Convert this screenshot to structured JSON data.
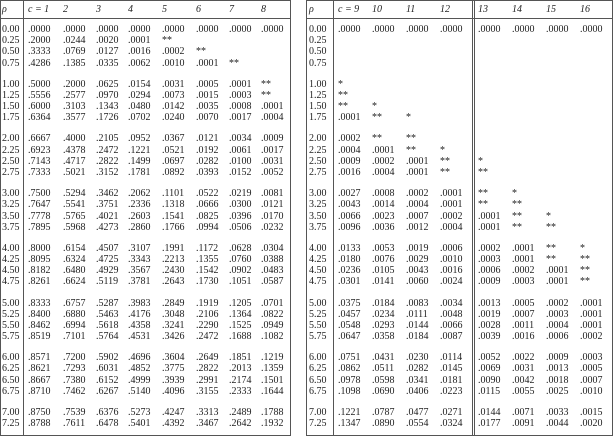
{
  "left": {
    "header": [
      "ρ",
      "c = 1",
      "2",
      "3",
      "4",
      "5",
      "6",
      "7",
      "8"
    ],
    "rows": [
      [
        "0.00",
        ".0000",
        ".0000",
        ".0000",
        ".0000",
        ".0000",
        ".0000",
        ".0000",
        ".0000"
      ],
      [
        "0.25",
        ".2000",
        ".0244",
        ".0020",
        ".0001",
        "**",
        null,
        null,
        null
      ],
      [
        "0.50",
        ".3333",
        ".0769",
        ".0127",
        ".0016",
        ".0002",
        "**",
        null,
        null
      ],
      [
        "0.75",
        ".4286",
        ".1385",
        ".0335",
        ".0062",
        ".0010",
        ".0001",
        "**",
        null
      ],
      [
        "1.00",
        ".5000",
        ".2000",
        ".0625",
        ".0154",
        ".0031",
        ".0005",
        ".0001",
        "**"
      ],
      [
        "1.25",
        ".5556",
        ".2577",
        ".0970",
        ".0294",
        ".0073",
        ".0015",
        ".0003",
        "**"
      ],
      [
        "1.50",
        ".6000",
        ".3103",
        ".1343",
        ".0480",
        ".0142",
        ".0035",
        ".0008",
        ".0001"
      ],
      [
        "1.75",
        ".6364",
        ".3577",
        ".1726",
        ".0702",
        ".0240",
        ".0070",
        ".0017",
        ".0004"
      ],
      [
        "2.00",
        ".6667",
        ".4000",
        ".2105",
        ".0952",
        ".0367",
        ".0121",
        ".0034",
        ".0009"
      ],
      [
        "2.25",
        ".6923",
        ".4378",
        ".2472",
        ".1221",
        ".0521",
        ".0192",
        ".0061",
        ".0017"
      ],
      [
        "2.50",
        ".7143",
        ".4717",
        ".2822",
        ".1499",
        ".0697",
        ".0282",
        ".0100",
        ".0031"
      ],
      [
        "2.75",
        ".7333",
        ".5021",
        ".3152",
        ".1781",
        ".0892",
        ".0393",
        ".0152",
        ".0052"
      ],
      [
        "3.00",
        ".7500",
        ".5294",
        ".3462",
        ".2062",
        ".1101",
        ".0522",
        ".0219",
        ".0081"
      ],
      [
        "3.25",
        ".7647",
        ".5541",
        ".3751",
        ".2336",
        ".1318",
        ".0666",
        ".0300",
        ".0121"
      ],
      [
        "3.50",
        ".7778",
        ".5765",
        ".4021",
        ".2603",
        ".1541",
        ".0825",
        ".0396",
        ".0170"
      ],
      [
        "3.75",
        ".7895",
        ".5968",
        ".4273",
        ".2860",
        ".1766",
        ".0994",
        ".0506",
        ".0232"
      ],
      [
        "4.00",
        ".8000",
        ".6154",
        ".4507",
        ".3107",
        ".1991",
        ".1172",
        ".0628",
        ".0304"
      ],
      [
        "4.25",
        ".8095",
        ".6324",
        ".4725",
        ".3343",
        ".2213",
        ".1355",
        ".0760",
        ".0388"
      ],
      [
        "4.50",
        ".8182",
        ".6480",
        ".4929",
        ".3567",
        ".2430",
        ".1542",
        ".0902",
        ".0483"
      ],
      [
        "4.75",
        ".8261",
        ".6624",
        ".5119",
        ".3781",
        ".2643",
        ".1730",
        ".1051",
        ".0587"
      ],
      [
        "5.00",
        ".8333",
        ".6757",
        ".5287",
        ".3983",
        ".2849",
        ".1919",
        ".1205",
        ".0701"
      ],
      [
        "5.25",
        ".8400",
        ".6880",
        ".5463",
        ".4176",
        ".3048",
        ".2106",
        ".1364",
        ".0822"
      ],
      [
        "5.50",
        ".8462",
        ".6994",
        ".5618",
        ".4358",
        ".3241",
        ".2290",
        ".1525",
        ".0949"
      ],
      [
        "5.75",
        ".8519",
        ".7101",
        ".5764",
        ".4531",
        ".3426",
        ".2472",
        ".1688",
        ".1082"
      ],
      [
        "6.00",
        ".8571",
        ".7200",
        ".5902",
        ".4696",
        ".3604",
        ".2649",
        ".1851",
        ".1219"
      ],
      [
        "6.25",
        ".8621",
        ".7293",
        ".6031",
        ".4852",
        ".3775",
        ".2822",
        ".2013",
        ".1359"
      ],
      [
        "6.50",
        ".8667",
        ".7380",
        ".6152",
        ".4999",
        ".3939",
        ".2991",
        ".2174",
        ".1501"
      ],
      [
        "6.75",
        ".8710",
        ".7462",
        ".6267",
        ".5140",
        ".4096",
        ".3155",
        ".2333",
        ".1644"
      ],
      [
        "7.00",
        ".8750",
        ".7539",
        ".6376",
        ".5273",
        ".4247",
        ".3313",
        ".2489",
        ".1788"
      ],
      [
        "7.25",
        ".8788",
        ".7611",
        ".6478",
        ".5401",
        ".4392",
        ".3467",
        ".2642",
        ".1932"
      ]
    ]
  },
  "right": {
    "header": [
      "ρ",
      "c = 9",
      "10",
      "11",
      "12",
      "13",
      "14",
      "15",
      "16"
    ],
    "rows": [
      [
        "0.00",
        ".0000",
        ".0000",
        ".0000",
        ".0000",
        ".0000",
        ".0000",
        ".0000",
        ".0000"
      ],
      [
        "0.25",
        null,
        null,
        null,
        null,
        null,
        null,
        null,
        null
      ],
      [
        "0.50",
        null,
        null,
        null,
        null,
        null,
        null,
        null,
        null
      ],
      [
        "0.75",
        null,
        null,
        null,
        null,
        null,
        null,
        null,
        null
      ],
      [
        "1.00",
        "*",
        null,
        null,
        null,
        null,
        null,
        null,
        null
      ],
      [
        "1.25",
        "**",
        null,
        null,
        null,
        null,
        null,
        null,
        null
      ],
      [
        "1.50",
        "**",
        "*",
        null,
        null,
        null,
        null,
        null,
        null
      ],
      [
        "1.75",
        ".0001",
        "**",
        "*",
        null,
        null,
        null,
        null,
        null
      ],
      [
        "2.00",
        ".0002",
        "**",
        "**",
        null,
        null,
        null,
        null,
        null
      ],
      [
        "2.25",
        ".0004",
        ".0001",
        "**",
        "*",
        null,
        null,
        null,
        null
      ],
      [
        "2.50",
        ".0009",
        ".0002",
        ".0001",
        "**",
        "*",
        null,
        null,
        null
      ],
      [
        "2.75",
        ".0016",
        ".0004",
        ".0001",
        "**",
        "**",
        null,
        null,
        null
      ],
      [
        "3.00",
        ".0027",
        ".0008",
        ".0002",
        ".0001",
        "**",
        "*",
        null,
        null
      ],
      [
        "3.25",
        ".0043",
        ".0014",
        ".0004",
        ".0001",
        "**",
        "**",
        null,
        null
      ],
      [
        "3.50",
        ".0066",
        ".0023",
        ".0007",
        ".0002",
        ".0001",
        "**",
        "*",
        null
      ],
      [
        "3.75",
        ".0096",
        ".0036",
        ".0012",
        ".0004",
        ".0001",
        "**",
        "**",
        null
      ],
      [
        "4.00",
        ".0133",
        ".0053",
        ".0019",
        ".0006",
        ".0002",
        ".0001",
        "**",
        "*"
      ],
      [
        "4.25",
        ".0180",
        ".0076",
        ".0029",
        ".0010",
        ".0003",
        ".0001",
        "**",
        "**"
      ],
      [
        "4.50",
        ".0236",
        ".0105",
        ".0043",
        ".0016",
        ".0006",
        ".0002",
        ".0001",
        "**"
      ],
      [
        "4.75",
        ".0301",
        ".0141",
        ".0060",
        ".0024",
        ".0009",
        ".0003",
        ".0001",
        "**"
      ],
      [
        "5.00",
        ".0375",
        ".0184",
        ".0083",
        ".0034",
        ".0013",
        ".0005",
        ".0002",
        ".0001"
      ],
      [
        "5.25",
        ".0457",
        ".0234",
        ".0111",
        ".0048",
        ".0019",
        ".0007",
        ".0003",
        ".0001"
      ],
      [
        "5.50",
        ".0548",
        ".0293",
        ".0144",
        ".0066",
        ".0028",
        ".0011",
        ".0004",
        ".0001"
      ],
      [
        "5.75",
        ".0647",
        ".0358",
        ".0184",
        ".0087",
        ".0039",
        ".0016",
        ".0006",
        ".0002"
      ],
      [
        "6.00",
        ".0751",
        ".0431",
        ".0230",
        ".0114",
        ".0052",
        ".0022",
        ".0009",
        ".0003"
      ],
      [
        "6.25",
        ".0862",
        ".0511",
        ".0282",
        ".0145",
        ".0069",
        ".0031",
        ".0013",
        ".0005"
      ],
      [
        "6.50",
        ".0978",
        ".0598",
        ".0341",
        ".0181",
        ".0090",
        ".0042",
        ".0018",
        ".0007"
      ],
      [
        "6.75",
        ".1098",
        ".0690",
        ".0406",
        ".0223",
        ".0115",
        ".0055",
        ".0025",
        ".0010"
      ],
      [
        "7.00",
        ".1221",
        ".0787",
        ".0477",
        ".0271",
        ".0144",
        ".0071",
        ".0033",
        ".0015"
      ],
      [
        "7.25",
        ".1347",
        ".0890",
        ".0554",
        ".0324",
        ".0177",
        ".0091",
        ".0044",
        ".0020"
      ]
    ]
  }
}
